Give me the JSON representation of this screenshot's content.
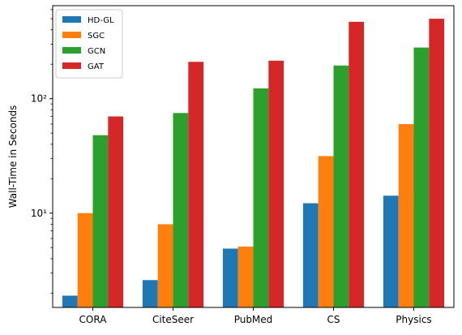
{
  "chart_data": {
    "type": "bar",
    "title": "",
    "xlabel": "",
    "ylabel": "Wall-Time in Seconds",
    "yscale": "log",
    "ylim": [
      1.5,
      650
    ],
    "grid": false,
    "legend_position": "top-left",
    "categories": [
      "CORA",
      "CiteSeer",
      "PubMed",
      "CS",
      "Physics"
    ],
    "series": [
      {
        "name": "HD-GL",
        "color": "#1f77b4",
        "values": [
          1.9,
          2.6,
          4.9,
          12.2,
          14.2
        ]
      },
      {
        "name": "SGC",
        "color": "#ff7f0e",
        "values": [
          10.0,
          8.0,
          5.1,
          31.5,
          60.0
        ]
      },
      {
        "name": "GCN",
        "color": "#2ca02c",
        "values": [
          48.0,
          75.0,
          123.0,
          195.0,
          280.0
        ]
      },
      {
        "name": "GAT",
        "color": "#d62728",
        "values": [
          70.0,
          210.0,
          215.0,
          470.0,
          500.0
        ]
      }
    ],
    "y_ticks_major": [
      {
        "value": 10,
        "label": "10¹"
      },
      {
        "value": 100,
        "label": "10²"
      }
    ]
  }
}
